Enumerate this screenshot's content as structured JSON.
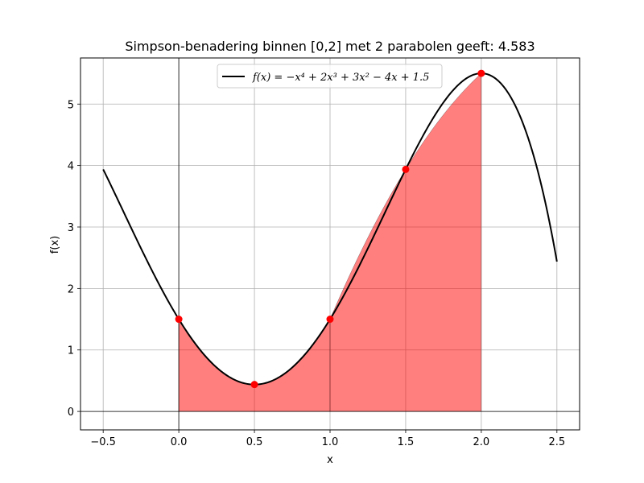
{
  "chart_data": {
    "type": "line",
    "title": "Simpson-benadering binnen [0,2] met 2 parabolen geeft: 4.583",
    "xlabel": "x",
    "ylabel": "f(x)",
    "xlim": [
      -0.65,
      2.65
    ],
    "ylim": [
      -0.3,
      5.75
    ],
    "grid": true,
    "x_ticks": [
      -0.5,
      0.0,
      0.5,
      1.0,
      1.5,
      2.0,
      2.5
    ],
    "x_tick_labels": [
      "−0.5",
      "0.0",
      "0.5",
      "1.0",
      "1.5",
      "2.0",
      "2.5"
    ],
    "y_ticks": [
      0,
      1,
      2,
      3,
      4,
      5
    ],
    "y_tick_labels": [
      "0",
      "1",
      "2",
      "3",
      "4",
      "5"
    ],
    "legend_position": "top-center",
    "legend_label": "f(x) = −x⁴ + 2x³ + 3x² − 4x + 1.5",
    "function_series": {
      "name": "f(x) = −x⁴ + 2x³ + 3x² − 4x + 1.5",
      "coefficients": [
        -1,
        2,
        3,
        -4,
        1.5
      ],
      "x_range": [
        -0.5,
        2.5
      ],
      "color": "#000000"
    },
    "sample_points": {
      "x": [
        0.0,
        0.5,
        1.0,
        1.5,
        2.0
      ],
      "y": [
        1.5,
        0.4375,
        1.5,
        3.9375,
        5.5
      ],
      "color": "#ff0000"
    },
    "simpson_fill": {
      "intervals": [
        [
          0,
          1
        ],
        [
          1,
          2
        ]
      ],
      "color": "#ff0000",
      "opacity": 0.5
    },
    "reference_lines": {
      "x_zero": true,
      "y_zero": true
    }
  }
}
